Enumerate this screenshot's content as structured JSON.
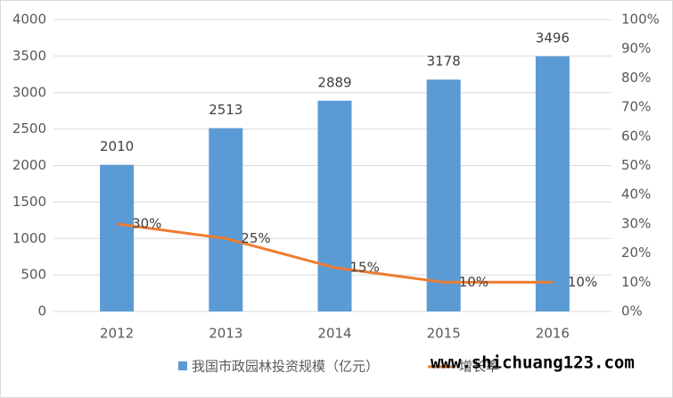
{
  "chart_data": {
    "type": "bar",
    "categories": [
      "2012",
      "2013",
      "2014",
      "2015",
      "2016"
    ],
    "series": [
      {
        "name": "我国市政园林投资规模（亿元）",
        "type": "bar",
        "color": "#5b9bd5",
        "values": [
          2010,
          2513,
          2889,
          3178,
          3496
        ]
      },
      {
        "name": "增长率",
        "type": "line",
        "axis": "y2",
        "color": "#ed7d31",
        "values": [
          30,
          25,
          15,
          10,
          10
        ],
        "value_labels": [
          "30%",
          "25%",
          "15%",
          "10%",
          "10%"
        ]
      }
    ],
    "ylim": [
      0,
      4000
    ],
    "yticks": [
      0,
      500,
      1000,
      1500,
      2000,
      2500,
      3000,
      3500,
      4000
    ],
    "y2lim": [
      0,
      100
    ],
    "y2ticks": [
      {
        "value": 0,
        "label": "0%"
      },
      {
        "value": 10,
        "label": "10%"
      },
      {
        "value": 20,
        "label": "20%"
      },
      {
        "value": 30,
        "label": "30%"
      },
      {
        "value": 40,
        "label": "40%"
      },
      {
        "value": 50,
        "label": "50%"
      },
      {
        "value": 60,
        "label": "60%"
      },
      {
        "value": 70,
        "label": "70%"
      },
      {
        "value": 80,
        "label": "80%"
      },
      {
        "value": 90,
        "label": "90%"
      },
      {
        "value": 100,
        "label": "100%"
      }
    ],
    "grid": true,
    "legend": "bottom",
    "watermark": "www.shichuang123.com"
  }
}
